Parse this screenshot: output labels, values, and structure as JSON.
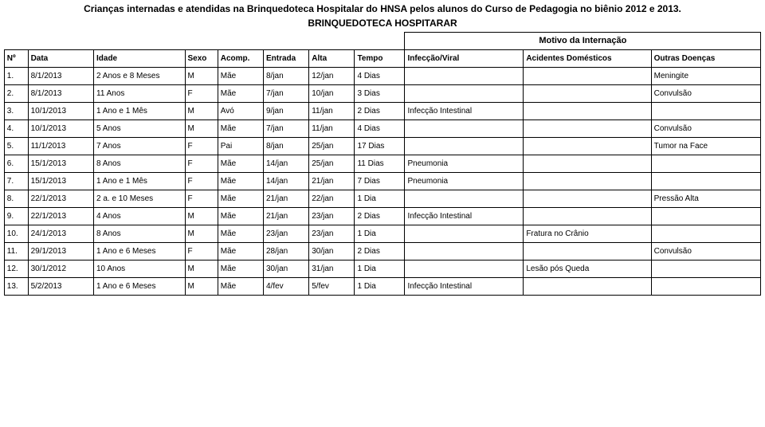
{
  "title": "Crianças internadas e atendidas na Brinquedoteca Hospitalar do HNSA pelos alunos do Curso de Pedagogia no biênio 2012 e 2013.",
  "subtitle": "BRINQUEDOTECA HOSPITARAR",
  "motivo_label": "Motivo da Internação",
  "headers": {
    "num": "Nº",
    "data": "Data",
    "idade": "Idade",
    "sexo": "Sexo",
    "acomp": "Acomp.",
    "entrada": "Entrada",
    "alta": "Alta",
    "tempo": "Tempo",
    "infeccao": "Infecção/Viral",
    "acidentes": "Acidentes Domésticos",
    "outras": "Outras Doenças"
  },
  "rows": [
    {
      "n": "1.",
      "data": "8/1/2013",
      "idade": "2 Anos e 8 Meses",
      "sexo": "M",
      "acomp": "Mãe",
      "ent": "8/jan",
      "alta": "12/jan",
      "tempo": "4 Dias",
      "inf": "",
      "acid": "",
      "out": "Meningite"
    },
    {
      "n": "2.",
      "data": "8/1/2013",
      "idade": "11 Anos",
      "sexo": "F",
      "acomp": "Mãe",
      "ent": "7/jan",
      "alta": "10/jan",
      "tempo": "3 Dias",
      "inf": "",
      "acid": "",
      "out": "Convulsão"
    },
    {
      "n": "3.",
      "data": "10/1/2013",
      "idade": "1 Ano e 1 Mês",
      "sexo": "M",
      "acomp": "Avó",
      "ent": "9/jan",
      "alta": "11/jan",
      "tempo": "2 Dias",
      "inf": "Infecção Intestinal",
      "acid": "",
      "out": ""
    },
    {
      "n": "4.",
      "data": "10/1/2013",
      "idade": "5 Anos",
      "sexo": "M",
      "acomp": "Mãe",
      "ent": "7/jan",
      "alta": "11/jan",
      "tempo": "4 Dias",
      "inf": "",
      "acid": "",
      "out": "Convulsão"
    },
    {
      "n": "5.",
      "data": "11/1/2013",
      "idade": "7 Anos",
      "sexo": "F",
      "acomp": "Pai",
      "ent": "8/jan",
      "alta": "25/jan",
      "tempo": "17 Dias",
      "inf": "",
      "acid": "",
      "out": "Tumor na Face"
    },
    {
      "n": "6.",
      "data": "15/1/2013",
      "idade": "8 Anos",
      "sexo": "F",
      "acomp": "Mãe",
      "ent": "14/jan",
      "alta": "25/jan",
      "tempo": "11 Dias",
      "inf": "Pneumonia",
      "acid": "",
      "out": ""
    },
    {
      "n": "7.",
      "data": "15/1/2013",
      "idade": "1 Ano e 1 Mês",
      "sexo": "F",
      "acomp": "Mãe",
      "ent": "14/jan",
      "alta": "21/jan",
      "tempo": "7 Dias",
      "inf": "Pneumonia",
      "acid": "",
      "out": ""
    },
    {
      "n": "8.",
      "data": "22/1/2013",
      "idade": "2 a. e 10 Meses",
      "sexo": "F",
      "acomp": "Mãe",
      "ent": "21/jan",
      "alta": "22/jan",
      "tempo": "1 Dia",
      "inf": "",
      "acid": "",
      "out": "Pressão Alta"
    },
    {
      "n": "9.",
      "data": "22/1/2013",
      "idade": "4 Anos",
      "sexo": "M",
      "acomp": "Mãe",
      "ent": "21/jan",
      "alta": "23/jan",
      "tempo": "2 Dias",
      "inf": "Infecção Intestinal",
      "acid": "",
      "out": ""
    },
    {
      "n": "10.",
      "data": "24/1/2013",
      "idade": "8 Anos",
      "sexo": "M",
      "acomp": "Mãe",
      "ent": "23/jan",
      "alta": "23/jan",
      "tempo": "1 Dia",
      "inf": "",
      "acid": "Fratura no Crânio",
      "out": ""
    },
    {
      "n": "11.",
      "data": "29/1/2013",
      "idade": "1 Ano e 6 Meses",
      "sexo": "F",
      "acomp": "Mãe",
      "ent": "28/jan",
      "alta": "30/jan",
      "tempo": "2 Dias",
      "inf": "",
      "acid": "",
      "out": "Convulsão"
    },
    {
      "n": "12.",
      "data": "30/1/2012",
      "idade": "10 Anos",
      "sexo": "M",
      "acomp": "Mãe",
      "ent": "30/jan",
      "alta": "31/jan",
      "tempo": "1 Dia",
      "inf": "",
      "acid": "Lesão pós Queda",
      "out": ""
    },
    {
      "n": "13.",
      "data": "5/2/2013",
      "idade": "1 Ano e  6 Meses",
      "sexo": "M",
      "acomp": "Mãe",
      "ent": "4/fev",
      "alta": "5/fev",
      "tempo": "1 Dia",
      "inf": "Infecção Intestinal",
      "acid": "",
      "out": ""
    }
  ]
}
